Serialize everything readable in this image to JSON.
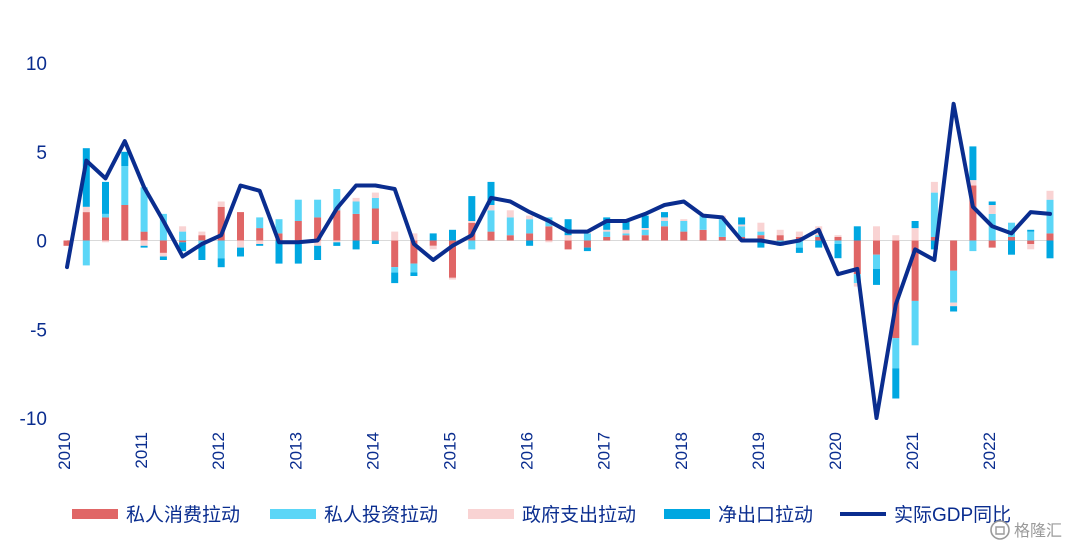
{
  "chart_data": {
    "type": "bar",
    "subtype": "stacked-bar-with-line",
    "ylim": [
      -10,
      10
    ],
    "yticks": [
      10,
      5,
      0,
      -5,
      -10
    ],
    "year_labels": [
      "2010",
      "2011",
      "2012",
      "2013",
      "2014",
      "2015",
      "2016",
      "2017",
      "2018",
      "2019",
      "2020",
      "2021",
      "2022"
    ],
    "quarters": [
      "2010Q1",
      "2010Q2",
      "2010Q3",
      "2010Q4",
      "2011Q1",
      "2011Q2",
      "2011Q3",
      "2011Q4",
      "2012Q1",
      "2012Q2",
      "2012Q3",
      "2012Q4",
      "2013Q1",
      "2013Q2",
      "2013Q3",
      "2013Q4",
      "2014Q1",
      "2014Q2",
      "2014Q3",
      "2014Q4",
      "2015Q1",
      "2015Q2",
      "2015Q3",
      "2015Q4",
      "2016Q1",
      "2016Q2",
      "2016Q3",
      "2016Q4",
      "2017Q1",
      "2017Q2",
      "2017Q3",
      "2017Q4",
      "2018Q1",
      "2018Q2",
      "2018Q3",
      "2018Q4",
      "2019Q1",
      "2019Q2",
      "2019Q3",
      "2019Q4",
      "2020Q1",
      "2020Q2",
      "2020Q3",
      "2020Q4",
      "2021Q1",
      "2021Q2",
      "2021Q3",
      "2021Q4",
      "2022Q1",
      "2022Q2",
      "2022Q3",
      "2022Q4"
    ],
    "series": [
      {
        "name": "私人消费拉动",
        "kind": "bar",
        "color": "#e06666",
        "values": [
          -0.3,
          1.6,
          1.3,
          2.0,
          0.5,
          -0.7,
          -0.1,
          0.3,
          1.9,
          1.6,
          0.7,
          0.4,
          1.1,
          1.3,
          1.7,
          1.5,
          1.8,
          -1.5,
          -1.3,
          -0.3,
          -2.1,
          1.0,
          0.5,
          0.3,
          0.4,
          0.8,
          -0.5,
          -0.4,
          0.2,
          0.3,
          0.3,
          0.8,
          0.5,
          0.6,
          0.2,
          0.2,
          0.3,
          0.3,
          0.2,
          0.2,
          0.2,
          -1.9,
          -0.8,
          -5.5,
          -3.4,
          0.2,
          -1.7,
          3.1,
          -0.4,
          0.2,
          -0.2,
          0.4
        ]
      },
      {
        "name": "私人投资拉动",
        "kind": "bar",
        "color": "#5bd6f7",
        "values": [
          0.0,
          -1.4,
          0.2,
          2.2,
          2.5,
          1.5,
          0.5,
          -0.2,
          -1.0,
          0.0,
          0.6,
          0.8,
          1.2,
          1.0,
          1.2,
          0.7,
          0.6,
          -0.3,
          -0.5,
          0.0,
          0.0,
          -0.5,
          1.2,
          1.0,
          0.8,
          0.5,
          0.0,
          0.4,
          0.3,
          0.1,
          0.3,
          0.3,
          0.6,
          0.8,
          1.0,
          0.6,
          0.2,
          -0.3,
          -0.4,
          0.1,
          -0.2,
          -0.5,
          -0.8,
          -1.7,
          -2.5,
          2.5,
          -1.8,
          -0.6,
          1.5,
          0.8,
          0.5,
          1.9
        ]
      },
      {
        "name": "政府支出拉动",
        "kind": "bar",
        "color": "#f9d3d3",
        "values": [
          0.0,
          0.3,
          -0.1,
          0.0,
          -0.3,
          -0.2,
          0.3,
          0.2,
          0.3,
          -0.4,
          -0.2,
          0.0,
          -0.1,
          -0.3,
          -0.1,
          0.2,
          0.3,
          0.5,
          0.4,
          -0.2,
          -0.1,
          0.1,
          0.3,
          0.4,
          0.2,
          -0.1,
          0.3,
          0.2,
          0.1,
          0.2,
          0.1,
          0.2,
          0.1,
          0.0,
          0.2,
          0.1,
          0.5,
          0.3,
          0.3,
          0.5,
          0.1,
          -0.2,
          0.8,
          0.3,
          0.7,
          0.6,
          -0.2,
          0.3,
          0.5,
          0.0,
          -0.3,
          0.5
        ]
      },
      {
        "name": "净出口拉动",
        "kind": "bar",
        "color": "#00a7e1",
        "values": [
          0.0,
          3.3,
          1.8,
          0.8,
          -0.1,
          -0.2,
          -0.5,
          -0.9,
          -0.5,
          -0.5,
          -0.1,
          -1.3,
          -1.2,
          -0.8,
          -0.2,
          -0.5,
          -0.2,
          -0.6,
          -0.2,
          0.4,
          0.6,
          1.4,
          1.3,
          0.0,
          -0.3,
          0.0,
          0.9,
          -0.2,
          0.7,
          0.6,
          0.7,
          0.3,
          0.0,
          0.0,
          0.0,
          0.4,
          -0.4,
          0.0,
          -0.3,
          -0.4,
          -0.8,
          0.8,
          -0.9,
          -1.7,
          0.4,
          -0.5,
          -0.3,
          1.9,
          0.2,
          -0.8,
          0.1,
          -1.0
        ]
      },
      {
        "name": "实际GDP同比",
        "kind": "line",
        "color": "#0a2d8f",
        "values": [
          -1.5,
          4.5,
          3.5,
          5.6,
          3.0,
          1.1,
          -0.9,
          -0.2,
          0.3,
          3.1,
          2.8,
          -0.1,
          -0.1,
          0.0,
          1.8,
          3.1,
          3.1,
          2.9,
          -0.2,
          -1.1,
          -0.3,
          0.3,
          2.4,
          2.2,
          1.6,
          1.1,
          0.5,
          0.5,
          1.1,
          1.1,
          1.5,
          2.0,
          2.2,
          1.4,
          1.3,
          0.0,
          0.0,
          -0.2,
          0.0,
          0.6,
          -1.9,
          -1.6,
          -10.0,
          -3.6,
          -0.5,
          -1.1,
          7.7,
          1.9,
          0.8,
          0.4,
          1.6,
          1.5
        ]
      }
    ]
  },
  "watermark": "格隆汇"
}
